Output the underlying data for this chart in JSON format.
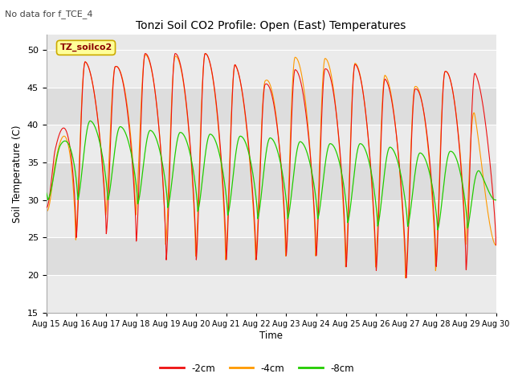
{
  "title": "Tonzi Soil CO2 Profile: Open (East) Temperatures",
  "no_data_label": "No data for f_TCE_4",
  "ylabel": "Soil Temperature (C)",
  "xlabel": "Time",
  "ylim": [
    15,
    52
  ],
  "yticks": [
    15,
    20,
    25,
    30,
    35,
    40,
    45,
    50
  ],
  "colors": {
    "-2cm": "#ee1111",
    "-4cm": "#ff9900",
    "-8cm": "#22cc00"
  },
  "legend_labels": [
    "-2cm",
    "-4cm",
    "-8cm"
  ],
  "annotation": "TZ_soilco2",
  "annotation_box_color": "#ffff99",
  "annotation_box_edge": "#ccaa00",
  "n_days": 16,
  "plot_bg_color": "#e8e8e8",
  "band_color1": "#e8e8e8",
  "band_color2": "#d8d8d8",
  "grid_color": "#ffffff",
  "figsize": [
    6.4,
    4.8
  ],
  "dpi": 100
}
